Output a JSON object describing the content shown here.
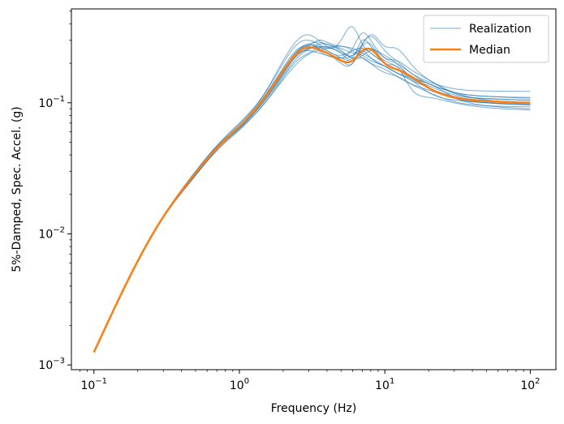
{
  "chart_data": {
    "type": "line",
    "title": "",
    "xlabel": "Frequency (Hz)",
    "ylabel": "5%-Damped, Spec. Accel. (g)",
    "xscale": "log",
    "yscale": "log",
    "xlim": [
      0.07,
      150
    ],
    "ylim": [
      0.00092,
      0.52
    ],
    "x_ticks": [
      {
        "value": 0.1,
        "base": "10",
        "exp": "−1"
      },
      {
        "value": 1,
        "base": "10",
        "exp": "0"
      },
      {
        "value": 10,
        "base": "10",
        "exp": "1"
      },
      {
        "value": 100,
        "base": "10",
        "exp": "2"
      }
    ],
    "y_ticks": [
      {
        "value": 0.001,
        "base": "10",
        "exp": "−3"
      },
      {
        "value": 0.01,
        "base": "10",
        "exp": "−2"
      },
      {
        "value": 0.1,
        "base": "10",
        "exp": "−1"
      }
    ],
    "legend": {
      "position": "top-right"
    },
    "colors": {
      "realization": "#1f77b4",
      "median": "#ff7f0e"
    },
    "x": [
      0.1,
      0.2,
      0.3,
      0.5,
      0.7,
      1,
      1.5,
      2,
      2.5,
      3,
      3.5,
      4,
      5,
      6,
      7,
      8,
      10,
      12,
      15,
      20,
      30,
      50,
      100
    ],
    "series": [
      {
        "name": "Realization",
        "style": "thin",
        "values": [
          0.00125,
          0.0062,
          0.0135,
          0.029,
          0.045,
          0.066,
          0.11,
          0.175,
          0.245,
          0.275,
          0.27,
          0.25,
          0.23,
          0.25,
          0.26,
          0.24,
          0.2,
          0.18,
          0.155,
          0.13,
          0.112,
          0.104,
          0.1
        ]
      },
      {
        "name": "",
        "style": "thin",
        "values": [
          0.00125,
          0.0061,
          0.0134,
          0.028,
          0.044,
          0.064,
          0.105,
          0.165,
          0.23,
          0.26,
          0.27,
          0.265,
          0.24,
          0.22,
          0.3,
          0.27,
          0.21,
          0.19,
          0.16,
          0.135,
          0.115,
          0.107,
          0.105
        ]
      },
      {
        "name": "",
        "style": "thin",
        "values": [
          0.00125,
          0.0063,
          0.0137,
          0.03,
          0.047,
          0.07,
          0.12,
          0.21,
          0.3,
          0.33,
          0.3,
          0.27,
          0.24,
          0.23,
          0.25,
          0.22,
          0.19,
          0.17,
          0.15,
          0.13,
          0.11,
          0.1,
          0.096
        ]
      },
      {
        "name": "",
        "style": "thin",
        "values": [
          0.00125,
          0.0062,
          0.0135,
          0.029,
          0.045,
          0.065,
          0.108,
          0.17,
          0.235,
          0.25,
          0.24,
          0.23,
          0.22,
          0.26,
          0.34,
          0.3,
          0.22,
          0.2,
          0.17,
          0.145,
          0.128,
          0.123,
          0.122
        ]
      },
      {
        "name": "",
        "style": "thin",
        "values": [
          0.00125,
          0.0061,
          0.0133,
          0.028,
          0.044,
          0.063,
          0.1,
          0.155,
          0.21,
          0.24,
          0.26,
          0.27,
          0.25,
          0.22,
          0.23,
          0.25,
          0.23,
          0.2,
          0.16,
          0.14,
          0.11,
          0.095,
          0.09
        ]
      },
      {
        "name": "",
        "style": "thin",
        "values": [
          0.00125,
          0.0062,
          0.0136,
          0.029,
          0.046,
          0.067,
          0.113,
          0.18,
          0.25,
          0.28,
          0.26,
          0.24,
          0.2,
          0.2,
          0.28,
          0.32,
          0.25,
          0.21,
          0.17,
          0.14,
          0.12,
          0.112,
          0.11
        ]
      },
      {
        "name": "",
        "style": "thin",
        "values": [
          0.00125,
          0.0062,
          0.0135,
          0.029,
          0.045,
          0.066,
          0.11,
          0.172,
          0.24,
          0.27,
          0.3,
          0.29,
          0.27,
          0.26,
          0.24,
          0.22,
          0.19,
          0.17,
          0.15,
          0.12,
          0.105,
          0.1,
          0.098
        ]
      },
      {
        "name": "",
        "style": "thin",
        "values": [
          0.00125,
          0.0061,
          0.0134,
          0.028,
          0.044,
          0.064,
          0.104,
          0.16,
          0.22,
          0.255,
          0.265,
          0.25,
          0.22,
          0.21,
          0.22,
          0.2,
          0.17,
          0.16,
          0.14,
          0.12,
          0.102,
          0.095,
          0.093
        ]
      },
      {
        "name": "",
        "style": "thin",
        "values": [
          0.00125,
          0.0063,
          0.0137,
          0.03,
          0.047,
          0.069,
          0.118,
          0.2,
          0.28,
          0.3,
          0.28,
          0.26,
          0.3,
          0.38,
          0.28,
          0.24,
          0.2,
          0.18,
          0.16,
          0.14,
          0.12,
          0.112,
          0.108
        ]
      },
      {
        "name": "",
        "style": "thin",
        "values": [
          0.00125,
          0.0062,
          0.0135,
          0.029,
          0.045,
          0.066,
          0.11,
          0.175,
          0.24,
          0.265,
          0.26,
          0.24,
          0.22,
          0.23,
          0.28,
          0.33,
          0.27,
          0.26,
          0.2,
          0.15,
          0.12,
          0.105,
          0.1
        ]
      },
      {
        "name": "",
        "style": "thin",
        "values": [
          0.00125,
          0.0061,
          0.0133,
          0.028,
          0.043,
          0.062,
          0.1,
          0.15,
          0.2,
          0.235,
          0.25,
          0.26,
          0.27,
          0.25,
          0.22,
          0.2,
          0.18,
          0.16,
          0.14,
          0.125,
          0.108,
          0.1,
          0.097
        ]
      },
      {
        "name": "",
        "style": "thin",
        "values": [
          0.00125,
          0.0062,
          0.0136,
          0.029,
          0.046,
          0.067,
          0.114,
          0.185,
          0.255,
          0.27,
          0.25,
          0.23,
          0.21,
          0.2,
          0.27,
          0.28,
          0.2,
          0.19,
          0.13,
          0.11,
          0.1,
          0.092,
          0.088
        ]
      },
      {
        "name": "",
        "style": "thin",
        "values": [
          0.00125,
          0.0062,
          0.0135,
          0.029,
          0.045,
          0.065,
          0.107,
          0.168,
          0.23,
          0.26,
          0.28,
          0.28,
          0.25,
          0.22,
          0.24,
          0.26,
          0.22,
          0.21,
          0.18,
          0.15,
          0.118,
          0.108,
          0.104
        ]
      },
      {
        "name": "",
        "style": "thin",
        "values": [
          0.00125,
          0.0062,
          0.0135,
          0.029,
          0.045,
          0.066,
          0.112,
          0.178,
          0.245,
          0.28,
          0.29,
          0.28,
          0.26,
          0.24,
          0.23,
          0.21,
          0.19,
          0.17,
          0.155,
          0.13,
          0.11,
          0.102,
          0.1
        ]
      },
      {
        "name": "Median",
        "style": "thick",
        "values": [
          0.00125,
          0.0062,
          0.0135,
          0.029,
          0.045,
          0.066,
          0.11,
          0.175,
          0.24,
          0.265,
          0.255,
          0.24,
          0.21,
          0.21,
          0.25,
          0.255,
          0.2,
          0.18,
          0.16,
          0.13,
          0.11,
          0.103,
          0.1
        ]
      }
    ]
  }
}
